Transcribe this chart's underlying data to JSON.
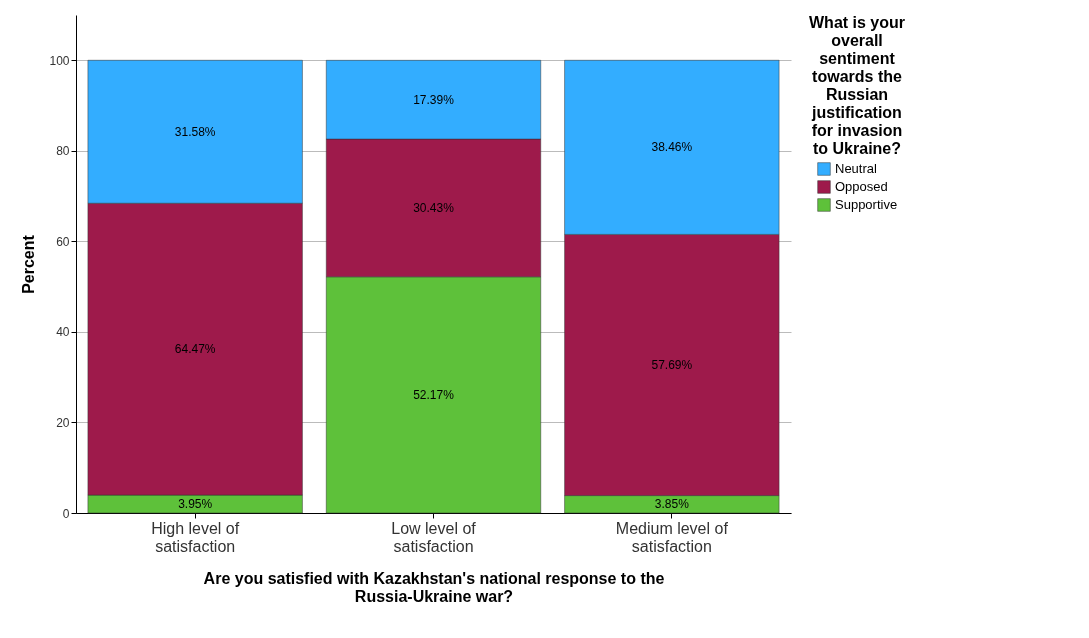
{
  "chart_data": {
    "type": "bar",
    "stacked": true,
    "categories": [
      "High level of satisfaction",
      "Low level of satisfaction",
      "Medium level of satisfaction"
    ],
    "series": [
      {
        "name": "Supportive",
        "color": "#5ec13a",
        "values": [
          3.95,
          52.17,
          3.85
        ],
        "value_labels": [
          "3.95%",
          "52.17%",
          "3.85%"
        ]
      },
      {
        "name": "Opposed",
        "color": "#9e1a4b",
        "values": [
          64.47,
          30.43,
          57.69
        ],
        "value_labels": [
          "64.47%",
          "30.43%",
          "57.69%"
        ]
      },
      {
        "name": "Neutral",
        "color": "#33adff",
        "values": [
          31.58,
          17.39,
          38.46
        ],
        "value_labels": [
          "31.58%",
          "17.39%",
          "38.46%"
        ]
      }
    ],
    "xlabel": "Are you satisfied with Kazakhstan's national response to the Russia-Ukraine war?",
    "ylabel": "Percent",
    "legend_title": "What is your overall sentiment towards the Russian justification for invasion to Ukraine?",
    "legend": "top right",
    "ylim": [
      0,
      110
    ],
    "yticks": [
      0,
      20,
      40,
      60,
      80,
      100
    ],
    "grid": "y"
  }
}
